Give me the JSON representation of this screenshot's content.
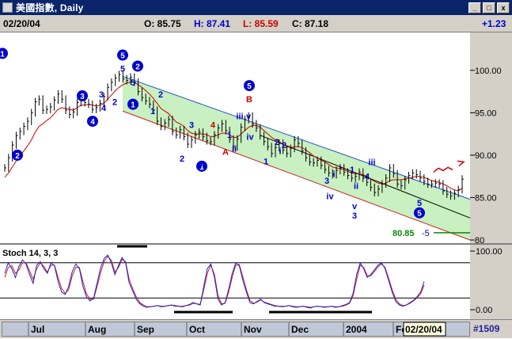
{
  "window": {
    "title": "美國指數, Daily",
    "buttons": [
      "_",
      "□",
      "x"
    ]
  },
  "info": {
    "date": "02/20/04",
    "open": "O: 85.75",
    "high": "H: 87.41",
    "low": "L: 85.59",
    "close": "C: 87.18",
    "change": "+1.23"
  },
  "colors": {
    "up_wave": "#0000cc",
    "corrective": "#cc0000",
    "price": "#000000",
    "ma": "#cc0000",
    "channel_fill": "#c8f0c0",
    "stoch_k": "#2020cc",
    "stoch_d": "#cc2020"
  },
  "chart_data": [
    {
      "type": "line",
      "ylim": [
        80,
        104
      ],
      "yticks": [
        80,
        85,
        90,
        95,
        100
      ],
      "ytick_labels": [
        "80",
        "85.00",
        "90.00",
        "95.00",
        "100.00"
      ],
      "x_labels": [
        "Jul",
        "Aug",
        "Sep",
        "Oct",
        "Nov",
        "Dec",
        "2004",
        "Feb"
      ],
      "cursor_label": "02/20/04",
      "bar_count": "#1509",
      "series": [
        {
          "values": [
            88.5,
            89.7,
            91.2,
            92.3,
            92.8,
            93.4,
            94.0,
            95.0,
            96.3,
            96.6,
            95.3,
            95.4,
            95.7,
            96.5,
            97.2,
            96.6,
            95.3,
            94.8,
            95.1,
            96.2,
            96.9,
            96.2,
            96.0,
            95.4,
            95.6,
            96.1,
            96.9,
            98.0,
            98.6,
            99.1,
            99.5,
            99.0,
            98.8,
            99.2,
            98.6,
            97.5,
            96.8,
            96.4,
            96.0,
            95.3,
            94.0,
            93.4,
            93.8,
            94.2,
            92.8,
            92.4,
            93.0,
            92.2,
            91.3,
            91.8,
            92.4,
            92.7,
            92.2,
            91.7,
            91.6,
            92.4,
            93.2,
            93.7,
            92.9,
            91.9,
            91.0,
            91.9,
            93.3,
            94.2,
            94.6,
            93.7,
            93.2,
            92.3,
            91.6,
            91.0,
            90.2,
            90.9,
            91.4,
            90.6,
            90.2,
            90.8,
            91.8,
            91.4,
            90.5,
            89.7,
            89.2,
            89.1,
            89.4,
            88.8,
            88.3,
            87.9,
            87.7,
            88.2,
            88.5,
            88.0,
            87.6,
            87.3,
            87.5,
            88.0,
            87.3,
            86.8,
            86.2,
            85.6,
            86.0,
            86.6,
            87.3,
            88.5,
            87.8,
            86.6,
            86.4,
            87.1,
            87.6,
            87.9,
            87.7,
            87.3,
            86.9,
            86.6,
            86.6,
            86.7,
            86.6,
            85.8,
            85.4,
            85.2,
            85.5,
            85.95,
            87.18
          ]
        },
        {
          "values": [
            87.4,
            87.9,
            88.6,
            89.3,
            89.9,
            90.5,
            91.1,
            91.8,
            92.7,
            93.4,
            93.7,
            94.1,
            94.4,
            94.9,
            95.4,
            95.6,
            95.5,
            95.4,
            95.3,
            95.6,
            95.9,
            95.9,
            96.0,
            95.9,
            95.8,
            95.9,
            96.1,
            96.6,
            97.1,
            97.6,
            98.0,
            98.3,
            98.5,
            98.6,
            98.6,
            98.3,
            98.0,
            97.6,
            97.2,
            96.7,
            96.1,
            95.5,
            95.2,
            94.9,
            94.4,
            93.9,
            93.7,
            93.4,
            92.9,
            92.6,
            92.5,
            92.5,
            92.5,
            92.4,
            92.2,
            92.2,
            92.4,
            92.6,
            92.6,
            92.4,
            92.1,
            92.1,
            92.5,
            92.9,
            93.3,
            93.5,
            93.5,
            93.3,
            92.9,
            92.5,
            92.1,
            91.8,
            91.6,
            91.3,
            91.0,
            90.9,
            91.0,
            91.0,
            90.9,
            90.6,
            90.3,
            89.9,
            89.7,
            89.4,
            89.2,
            88.9,
            88.6,
            88.5,
            88.4,
            88.3,
            88.1,
            87.9,
            87.8,
            87.8,
            87.7,
            87.5,
            87.2,
            86.9,
            86.7,
            86.6,
            86.7,
            87.0,
            87.1,
            87.1,
            87.1,
            87.2,
            87.3,
            87.4,
            87.5,
            87.5,
            87.4,
            87.2,
            87.0,
            86.9,
            86.8,
            86.6,
            86.4,
            86.1,
            85.9,
            85.8,
            86.1
          ]
        }
      ],
      "channel_upper": [
        [
          0.0,
          99.3
        ],
        [
          1.0,
          84.8
        ]
      ],
      "channel_lower": [
        [
          0.0,
          95.2
        ],
        [
          1.0,
          80.0
        ]
      ],
      "annotations": {
        "red_projection": "~~>",
        "target_value": "80.85",
        "target_label": "-5",
        "wave_labels": [
          "1",
          "2",
          "3",
          "4",
          "5",
          "5",
          "1",
          "2",
          "3",
          "4",
          "5",
          "2",
          "1",
          "2",
          "1",
          "2",
          "3",
          "4",
          "5",
          "1",
          "2",
          "3",
          "4",
          "5",
          "1",
          "i",
          "ii",
          "iii",
          "v",
          "iv",
          "1",
          "2",
          "i",
          "ii",
          "iii",
          "iv",
          "v",
          "3",
          "4",
          "5",
          "A",
          "B",
          "C"
        ]
      }
    },
    {
      "type": "line",
      "title": "Stoch 14, 3, 3",
      "ylim": [
        0,
        100
      ],
      "yticks": [
        0,
        100
      ],
      "ytick_labels": [
        "0.00",
        "100.00"
      ],
      "series": [
        {
          "values": [
            62,
            80,
            70,
            55,
            74,
            85,
            78,
            60,
            45,
            76,
            82,
            70,
            62,
            80,
            75,
            48,
            30,
            26,
            40,
            65,
            78,
            70,
            40,
            22,
            15,
            20,
            46,
            72,
            88,
            93,
            80,
            60,
            75,
            89,
            80,
            46,
            32,
            18,
            10,
            6,
            4,
            5,
            6,
            7,
            5,
            6,
            7,
            8,
            6,
            6,
            5,
            7,
            9,
            12,
            10,
            8,
            40,
            70,
            78,
            55,
            18,
            8,
            12,
            35,
            62,
            80,
            75,
            50,
            30,
            12,
            10,
            14,
            18,
            12,
            10,
            8,
            6,
            6,
            5,
            6,
            7,
            5,
            4,
            5,
            6,
            4,
            3,
            5,
            6,
            5,
            4,
            5,
            6,
            4,
            5,
            7,
            9,
            12,
            28,
            60,
            80,
            70,
            55,
            60,
            68,
            76,
            80,
            70,
            50,
            30,
            14,
            8,
            6,
            8,
            12,
            16,
            22,
            30,
            48
          ]
        },
        {
          "values": [
            55,
            72,
            75,
            62,
            68,
            80,
            80,
            66,
            52,
            70,
            80,
            74,
            64,
            76,
            76,
            55,
            36,
            28,
            34,
            58,
            72,
            72,
            48,
            27,
            18,
            18,
            40,
            64,
            83,
            91,
            84,
            64,
            72,
            86,
            82,
            52,
            36,
            22,
            12,
            8,
            5,
            5,
            6,
            7,
            6,
            6,
            7,
            8,
            7,
            6,
            6,
            7,
            8,
            11,
            10,
            9,
            34,
            62,
            76,
            60,
            24,
            10,
            11,
            30,
            56,
            76,
            77,
            56,
            34,
            16,
            11,
            13,
            17,
            13,
            11,
            9,
            7,
            6,
            6,
            6,
            7,
            6,
            5,
            5,
            6,
            5,
            4,
            5,
            6,
            5,
            5,
            5,
            6,
            5,
            5,
            6,
            8,
            11,
            24,
            52,
            76,
            72,
            58,
            58,
            65,
            73,
            78,
            72,
            54,
            34,
            18,
            10,
            7,
            8,
            11,
            15,
            20,
            27,
            42
          ]
        }
      ],
      "ref_lines": [
        20,
        80
      ],
      "markers": [
        "Aug-Sep overbought",
        "Oct oversold",
        "Nov-Dec oversold"
      ]
    }
  ]
}
